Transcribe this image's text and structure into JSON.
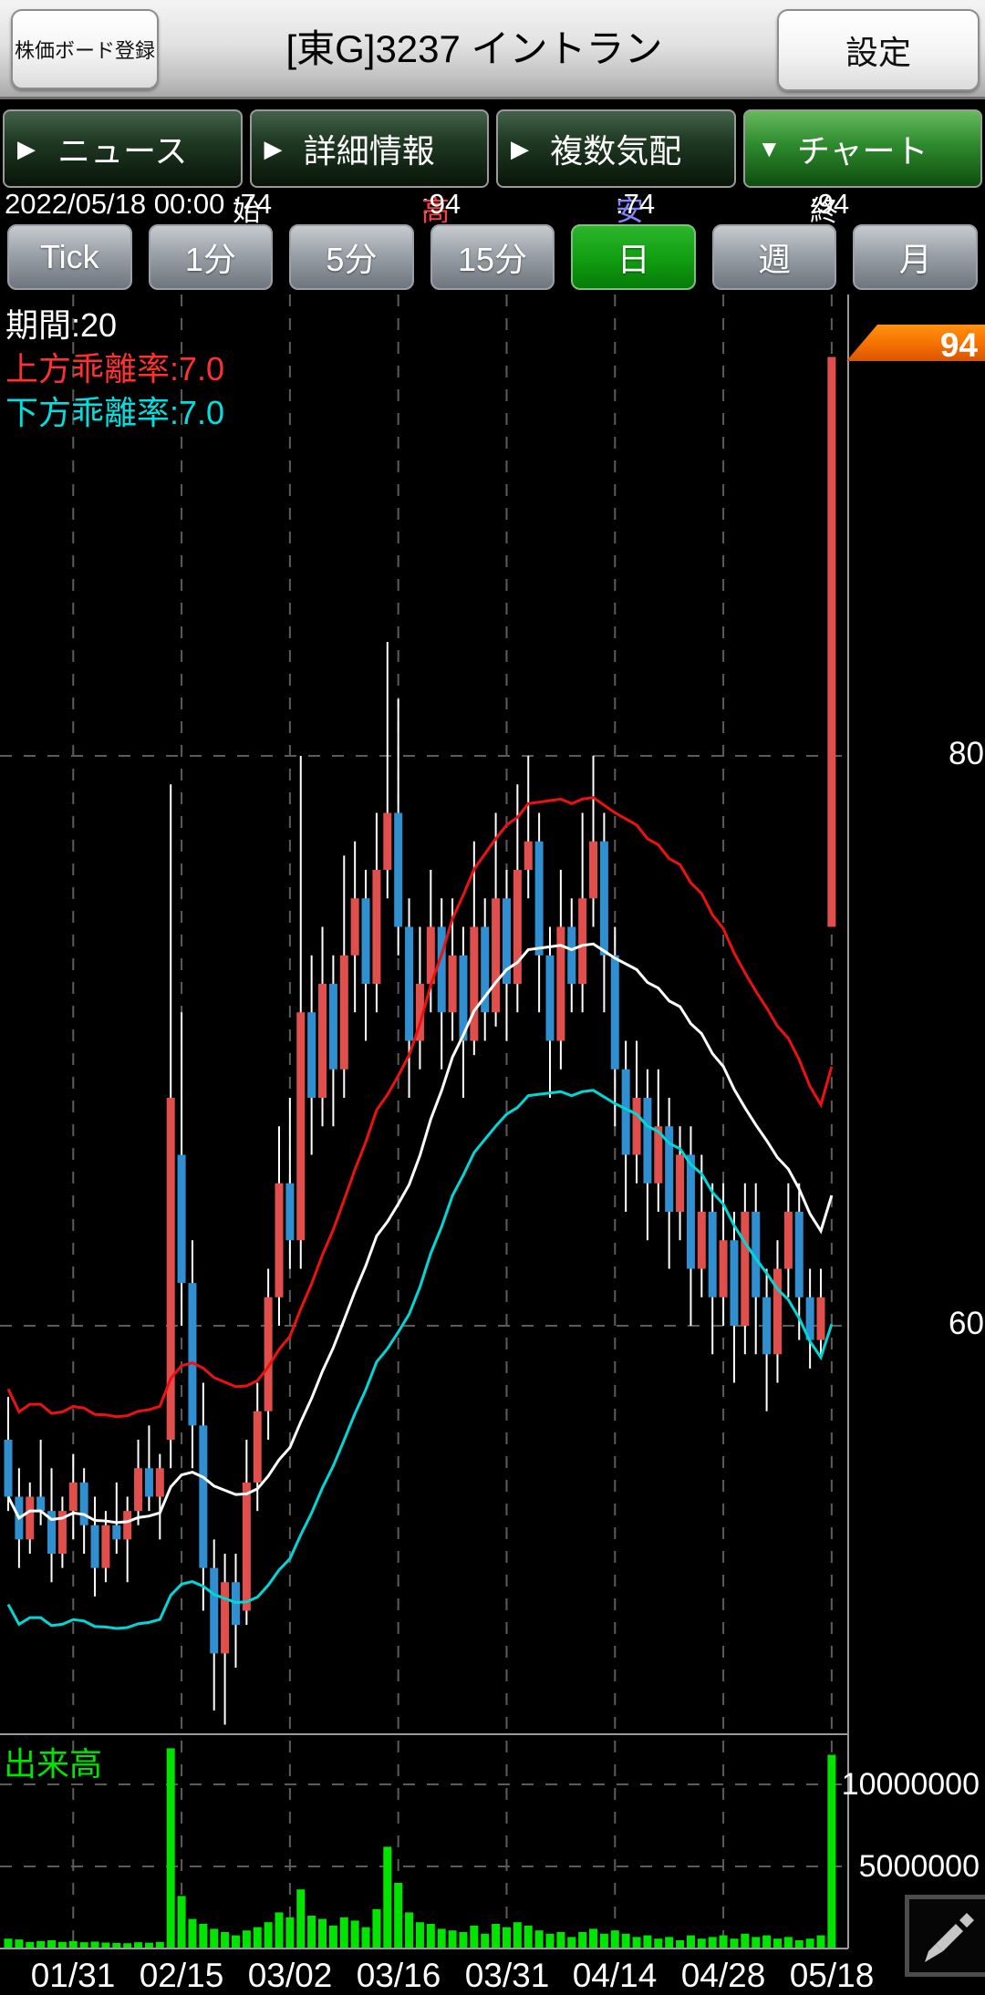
{
  "header": {
    "register_button": "株価ボード登録",
    "title": "[東G]3237 イントラン",
    "settings_button": "設定"
  },
  "tabs": [
    {
      "label": "ニュース",
      "arrow": "▶",
      "selected": false
    },
    {
      "label": "詳細情報",
      "arrow": "▶",
      "selected": false
    },
    {
      "label": "複数気配",
      "arrow": "▶",
      "selected": false
    },
    {
      "label": "チャート",
      "arrow": "▼",
      "selected": true
    }
  ],
  "quote": {
    "datetime": "2022/05/18 00:00",
    "open_label": "始",
    "open": "74",
    "high_label": "高",
    "high": "94",
    "low_label": "安",
    "low": "74",
    "close_label": "終",
    "close": "94"
  },
  "timeframes": [
    {
      "label": "Tick",
      "selected": false
    },
    {
      "label": "1分",
      "selected": false
    },
    {
      "label": "5分",
      "selected": false
    },
    {
      "label": "15分",
      "selected": false
    },
    {
      "label": "日",
      "selected": true
    },
    {
      "label": "週",
      "selected": false
    },
    {
      "label": "月",
      "selected": false
    }
  ],
  "chart_data": {
    "type": "candlestick",
    "title": "[東G]3237 イントラン 日足",
    "indicator": {
      "period_label": "期間:20",
      "upper_label": "上方乖離率:7.0",
      "lower_label": "下方乖離率:7.0",
      "period": 20,
      "envelope_rate_pct": 7.0
    },
    "colors": {
      "up": "#e14f4c",
      "down": "#2f8fd0",
      "ma": "#ffffff",
      "upper_band": "#ee1111",
      "lower_band": "#00d8d8",
      "volume": "#00e400",
      "current_price_tag": "#f57000"
    },
    "y_axis": {
      "ticks": [
        80,
        60
      ],
      "current_price": "94"
    },
    "volume_axis": {
      "label": "出来高",
      "ticks": [
        "10000000",
        "5000000"
      ],
      "tick_values": [
        10000000,
        5000000
      ]
    },
    "x_ticks": [
      {
        "label": "01/31",
        "index": 6
      },
      {
        "label": "02/15",
        "index": 16
      },
      {
        "label": "03/02",
        "index": 26
      },
      {
        "label": "03/16",
        "index": 36
      },
      {
        "label": "03/31",
        "index": 46
      },
      {
        "label": "04/14",
        "index": 56
      },
      {
        "label": "04/28",
        "index": 66
      },
      {
        "label": "05/18",
        "index": 76
      }
    ],
    "candles_note": "columns: date, open, high, low, close, volume",
    "candles": [
      [
        "01/21",
        56,
        57.5,
        53.5,
        54,
        600000
      ],
      [
        "01/24",
        54,
        55,
        51.5,
        52.5,
        550000
      ],
      [
        "01/25",
        52.5,
        54.5,
        52,
        54,
        400000
      ],
      [
        "01/26",
        54,
        56,
        53,
        53.5,
        450000
      ],
      [
        "01/27",
        53.5,
        55,
        51,
        52,
        500000
      ],
      [
        "01/28",
        52,
        54,
        51.5,
        53.5,
        400000
      ],
      [
        "01/31",
        53.5,
        55.5,
        52.5,
        54.5,
        450000
      ],
      [
        "02/01",
        54.5,
        55,
        52,
        53,
        380000
      ],
      [
        "02/02",
        53,
        54,
        50.5,
        51.5,
        420000
      ],
      [
        "02/03",
        51.5,
        53.5,
        51,
        53,
        360000
      ],
      [
        "02/04",
        53,
        54.5,
        52,
        52.5,
        340000
      ],
      [
        "02/07",
        52.5,
        54,
        51,
        53.5,
        320000
      ],
      [
        "02/08",
        53.5,
        56,
        53,
        55,
        380000
      ],
      [
        "02/09",
        55,
        56.5,
        53.5,
        54,
        350000
      ],
      [
        "02/10",
        54,
        55.5,
        52.5,
        55,
        400000
      ],
      [
        "02/14",
        56,
        79,
        55,
        68,
        12200000
      ],
      [
        "02/15",
        66,
        71,
        60,
        61.5,
        3200000
      ],
      [
        "02/16",
        61.5,
        63,
        55,
        56.5,
        1800000
      ],
      [
        "02/17",
        56.5,
        58,
        50,
        51.5,
        1500000
      ],
      [
        "02/18",
        51.5,
        52.5,
        46.5,
        48.5,
        1200000
      ],
      [
        "02/21",
        48.5,
        52,
        46,
        51,
        1000000
      ],
      [
        "02/22",
        51,
        52,
        48,
        49.5,
        800000
      ],
      [
        "02/24",
        50,
        56,
        49.5,
        54.5,
        1100000
      ],
      [
        "02/25",
        54.5,
        58,
        53.5,
        57,
        1300000
      ],
      [
        "02/28",
        57,
        62,
        56,
        61,
        1600000
      ],
      [
        "03/01",
        61,
        67,
        60,
        65,
        2200000
      ],
      [
        "03/02",
        65,
        68,
        62,
        63,
        1900000
      ],
      [
        "03/03",
        63,
        80,
        62,
        71,
        3600000
      ],
      [
        "03/04",
        71,
        73,
        66,
        68,
        2000000
      ],
      [
        "03/07",
        68,
        74,
        67,
        72,
        1800000
      ],
      [
        "03/08",
        72,
        73,
        67,
        69,
        1400000
      ],
      [
        "03/09",
        69,
        76.5,
        68,
        73,
        1900000
      ],
      [
        "03/10",
        73,
        77,
        71,
        75,
        1700000
      ],
      [
        "03/11",
        75,
        76,
        70,
        72,
        1300000
      ],
      [
        "03/14",
        72,
        78,
        71,
        76,
        2400000
      ],
      [
        "03/15",
        76,
        84,
        75,
        78,
        6200000
      ],
      [
        "03/16",
        78,
        82,
        73,
        74,
        4000000
      ],
      [
        "03/17",
        74,
        75,
        68,
        70,
        2200000
      ],
      [
        "03/18",
        70,
        74,
        69,
        72,
        1600000
      ],
      [
        "03/22",
        72,
        76,
        71,
        74,
        1500000
      ],
      [
        "03/23",
        74,
        75,
        69,
        71,
        1200000
      ],
      [
        "03/24",
        71,
        75,
        70,
        73,
        1100000
      ],
      [
        "03/25",
        73,
        74,
        68,
        70,
        1000000
      ],
      [
        "03/28",
        70,
        77,
        69.5,
        74,
        1400000
      ],
      [
        "03/29",
        74,
        75,
        70,
        71,
        900000
      ],
      [
        "03/30",
        71,
        78,
        70.5,
        75,
        1500000
      ],
      [
        "03/31",
        75,
        76,
        70,
        72,
        1300000
      ],
      [
        "04/01",
        72,
        79,
        71,
        76,
        1600000
      ],
      [
        "04/04",
        76,
        80,
        75,
        77,
        1400000
      ],
      [
        "04/05",
        77,
        78,
        71,
        73,
        1100000
      ],
      [
        "04/06",
        73,
        74,
        68,
        70,
        900000
      ],
      [
        "04/07",
        70,
        76,
        69,
        74,
        1000000
      ],
      [
        "04/08",
        74,
        75,
        71,
        72,
        700000
      ],
      [
        "04/11",
        72,
        78,
        71,
        75,
        1000000
      ],
      [
        "04/12",
        75,
        80,
        74,
        77,
        1200000
      ],
      [
        "04/13",
        77,
        78,
        71,
        73,
        900000
      ],
      [
        "04/14",
        73,
        74,
        67,
        69,
        1100000
      ],
      [
        "04/15",
        69,
        70,
        64,
        66,
        900000
      ],
      [
        "04/18",
        66,
        70,
        65,
        68,
        700000
      ],
      [
        "04/19",
        68,
        69,
        63,
        65,
        800000
      ],
      [
        "04/20",
        65,
        69,
        64,
        67,
        600000
      ],
      [
        "04/21",
        67,
        68,
        62,
        64,
        700000
      ],
      [
        "04/22",
        64,
        67,
        63,
        66,
        500000
      ],
      [
        "04/25",
        66,
        67,
        60,
        62,
        800000
      ],
      [
        "04/26",
        62,
        66,
        61,
        64,
        600000
      ],
      [
        "04/27",
        64,
        65,
        59,
        61,
        700000
      ],
      [
        "04/28",
        61,
        65,
        60,
        63,
        800000
      ],
      [
        "05/02",
        63,
        64,
        58,
        60,
        600000
      ],
      [
        "05/06",
        60,
        65,
        59,
        64,
        900000
      ],
      [
        "05/09",
        64,
        65,
        59,
        61,
        700000
      ],
      [
        "05/10",
        61,
        62,
        57,
        59,
        800000
      ],
      [
        "05/11",
        59,
        63,
        58,
        62,
        600000
      ],
      [
        "05/12",
        62,
        65,
        61,
        64,
        700000
      ],
      [
        "05/13",
        64,
        65,
        59.5,
        61,
        500000
      ],
      [
        "05/16",
        61,
        62,
        58.5,
        59.5,
        600000
      ],
      [
        "05/17",
        59.5,
        62,
        59,
        61,
        800000
      ],
      [
        "05/18",
        74,
        94,
        74,
        94,
        11800000
      ]
    ]
  }
}
